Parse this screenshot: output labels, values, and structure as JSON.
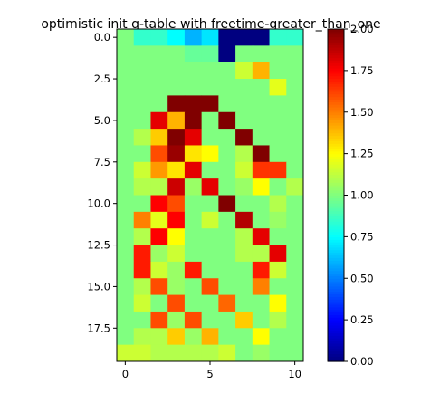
{
  "chart_data": {
    "type": "heatmap",
    "title": "optimistic init q-table with freetime-greater_than_one",
    "xlabel": "",
    "ylabel": "",
    "xlim": [
      -0.5,
      10.5
    ],
    "ylim": [
      19.5,
      -0.5
    ],
    "colormap": "jet",
    "vmin": 0.0,
    "vmax": 2.0,
    "x_ticks": [
      0,
      5,
      10
    ],
    "x_tick_labels": [
      "0",
      "5",
      "10"
    ],
    "y_ticks": [
      0,
      2.5,
      5,
      7.5,
      10,
      12.5,
      15,
      17.5
    ],
    "y_tick_labels": [
      "0.0",
      "2.5",
      "5.0",
      "7.5",
      "10.0",
      "12.5",
      "15.0",
      "17.5"
    ],
    "colorbar_ticks": [
      0,
      0.25,
      0.5,
      0.75,
      1.0,
      1.25,
      1.5,
      1.75,
      2.0
    ],
    "colorbar_tick_labels": [
      "0.00",
      "0.25",
      "0.50",
      "0.75",
      "1.00",
      "1.25",
      "1.50",
      "1.75",
      "2.00"
    ],
    "grid": false,
    "values": [
      [
        1.0,
        0.85,
        0.85,
        0.75,
        0.6,
        0.7,
        0.0,
        0.0,
        0.0,
        0.85,
        0.85
      ],
      [
        1.0,
        1.0,
        1.0,
        1.0,
        0.95,
        0.95,
        0.0,
        1.0,
        1.0,
        1.0,
        1.0
      ],
      [
        1.0,
        1.0,
        1.0,
        1.0,
        1.0,
        1.0,
        1.0,
        1.15,
        1.4,
        1.0,
        1.0
      ],
      [
        1.0,
        1.0,
        1.0,
        1.0,
        1.0,
        1.0,
        1.0,
        1.0,
        1.0,
        1.2,
        1.0
      ],
      [
        1.0,
        1.0,
        1.0,
        2.0,
        2.0,
        2.0,
        1.0,
        1.0,
        1.0,
        1.0,
        1.0
      ],
      [
        1.0,
        1.0,
        1.8,
        1.4,
        2.0,
        1.0,
        2.0,
        1.0,
        1.0,
        1.0,
        1.0
      ],
      [
        1.0,
        1.1,
        1.35,
        2.0,
        1.8,
        1.0,
        1.0,
        2.0,
        1.0,
        1.0,
        1.0
      ],
      [
        1.0,
        1.0,
        1.6,
        1.95,
        1.3,
        1.25,
        1.0,
        1.1,
        2.0,
        1.0,
        1.0
      ],
      [
        1.0,
        1.15,
        1.45,
        1.3,
        1.8,
        1.0,
        1.0,
        1.15,
        1.65,
        1.65,
        1.0
      ],
      [
        1.0,
        1.1,
        1.1,
        1.85,
        1.05,
        1.8,
        1.0,
        1.05,
        1.25,
        1.0,
        1.1
      ],
      [
        1.0,
        1.0,
        1.75,
        1.6,
        1.0,
        1.0,
        2.0,
        1.0,
        1.0,
        1.1,
        1.0
      ],
      [
        1.0,
        1.5,
        1.2,
        1.75,
        1.0,
        1.15,
        1.0,
        1.9,
        1.0,
        1.05,
        1.0
      ],
      [
        1.0,
        1.1,
        1.75,
        1.25,
        1.0,
        1.0,
        1.0,
        1.1,
        1.8,
        1.0,
        1.0
      ],
      [
        1.0,
        1.7,
        1.05,
        1.15,
        1.0,
        1.0,
        1.0,
        1.1,
        1.1,
        1.8,
        1.0
      ],
      [
        1.0,
        1.7,
        1.15,
        1.05,
        1.7,
        1.0,
        1.0,
        1.0,
        1.7,
        1.15,
        1.0
      ],
      [
        1.0,
        1.1,
        1.6,
        1.05,
        1.0,
        1.6,
        1.0,
        1.0,
        1.5,
        1.0,
        1.0
      ],
      [
        1.0,
        1.15,
        1.0,
        1.6,
        1.0,
        1.0,
        1.55,
        1.0,
        1.0,
        1.25,
        1.0
      ],
      [
        1.0,
        1.0,
        1.6,
        1.05,
        1.6,
        1.0,
        1.0,
        1.35,
        1.0,
        1.1,
        1.0
      ],
      [
        1.0,
        1.1,
        1.1,
        1.35,
        1.05,
        1.4,
        1.0,
        1.0,
        1.25,
        1.0,
        1.0
      ],
      [
        1.15,
        1.15,
        1.1,
        1.1,
        1.1,
        1.1,
        1.15,
        1.0,
        1.05,
        1.0,
        1.0
      ]
    ]
  }
}
